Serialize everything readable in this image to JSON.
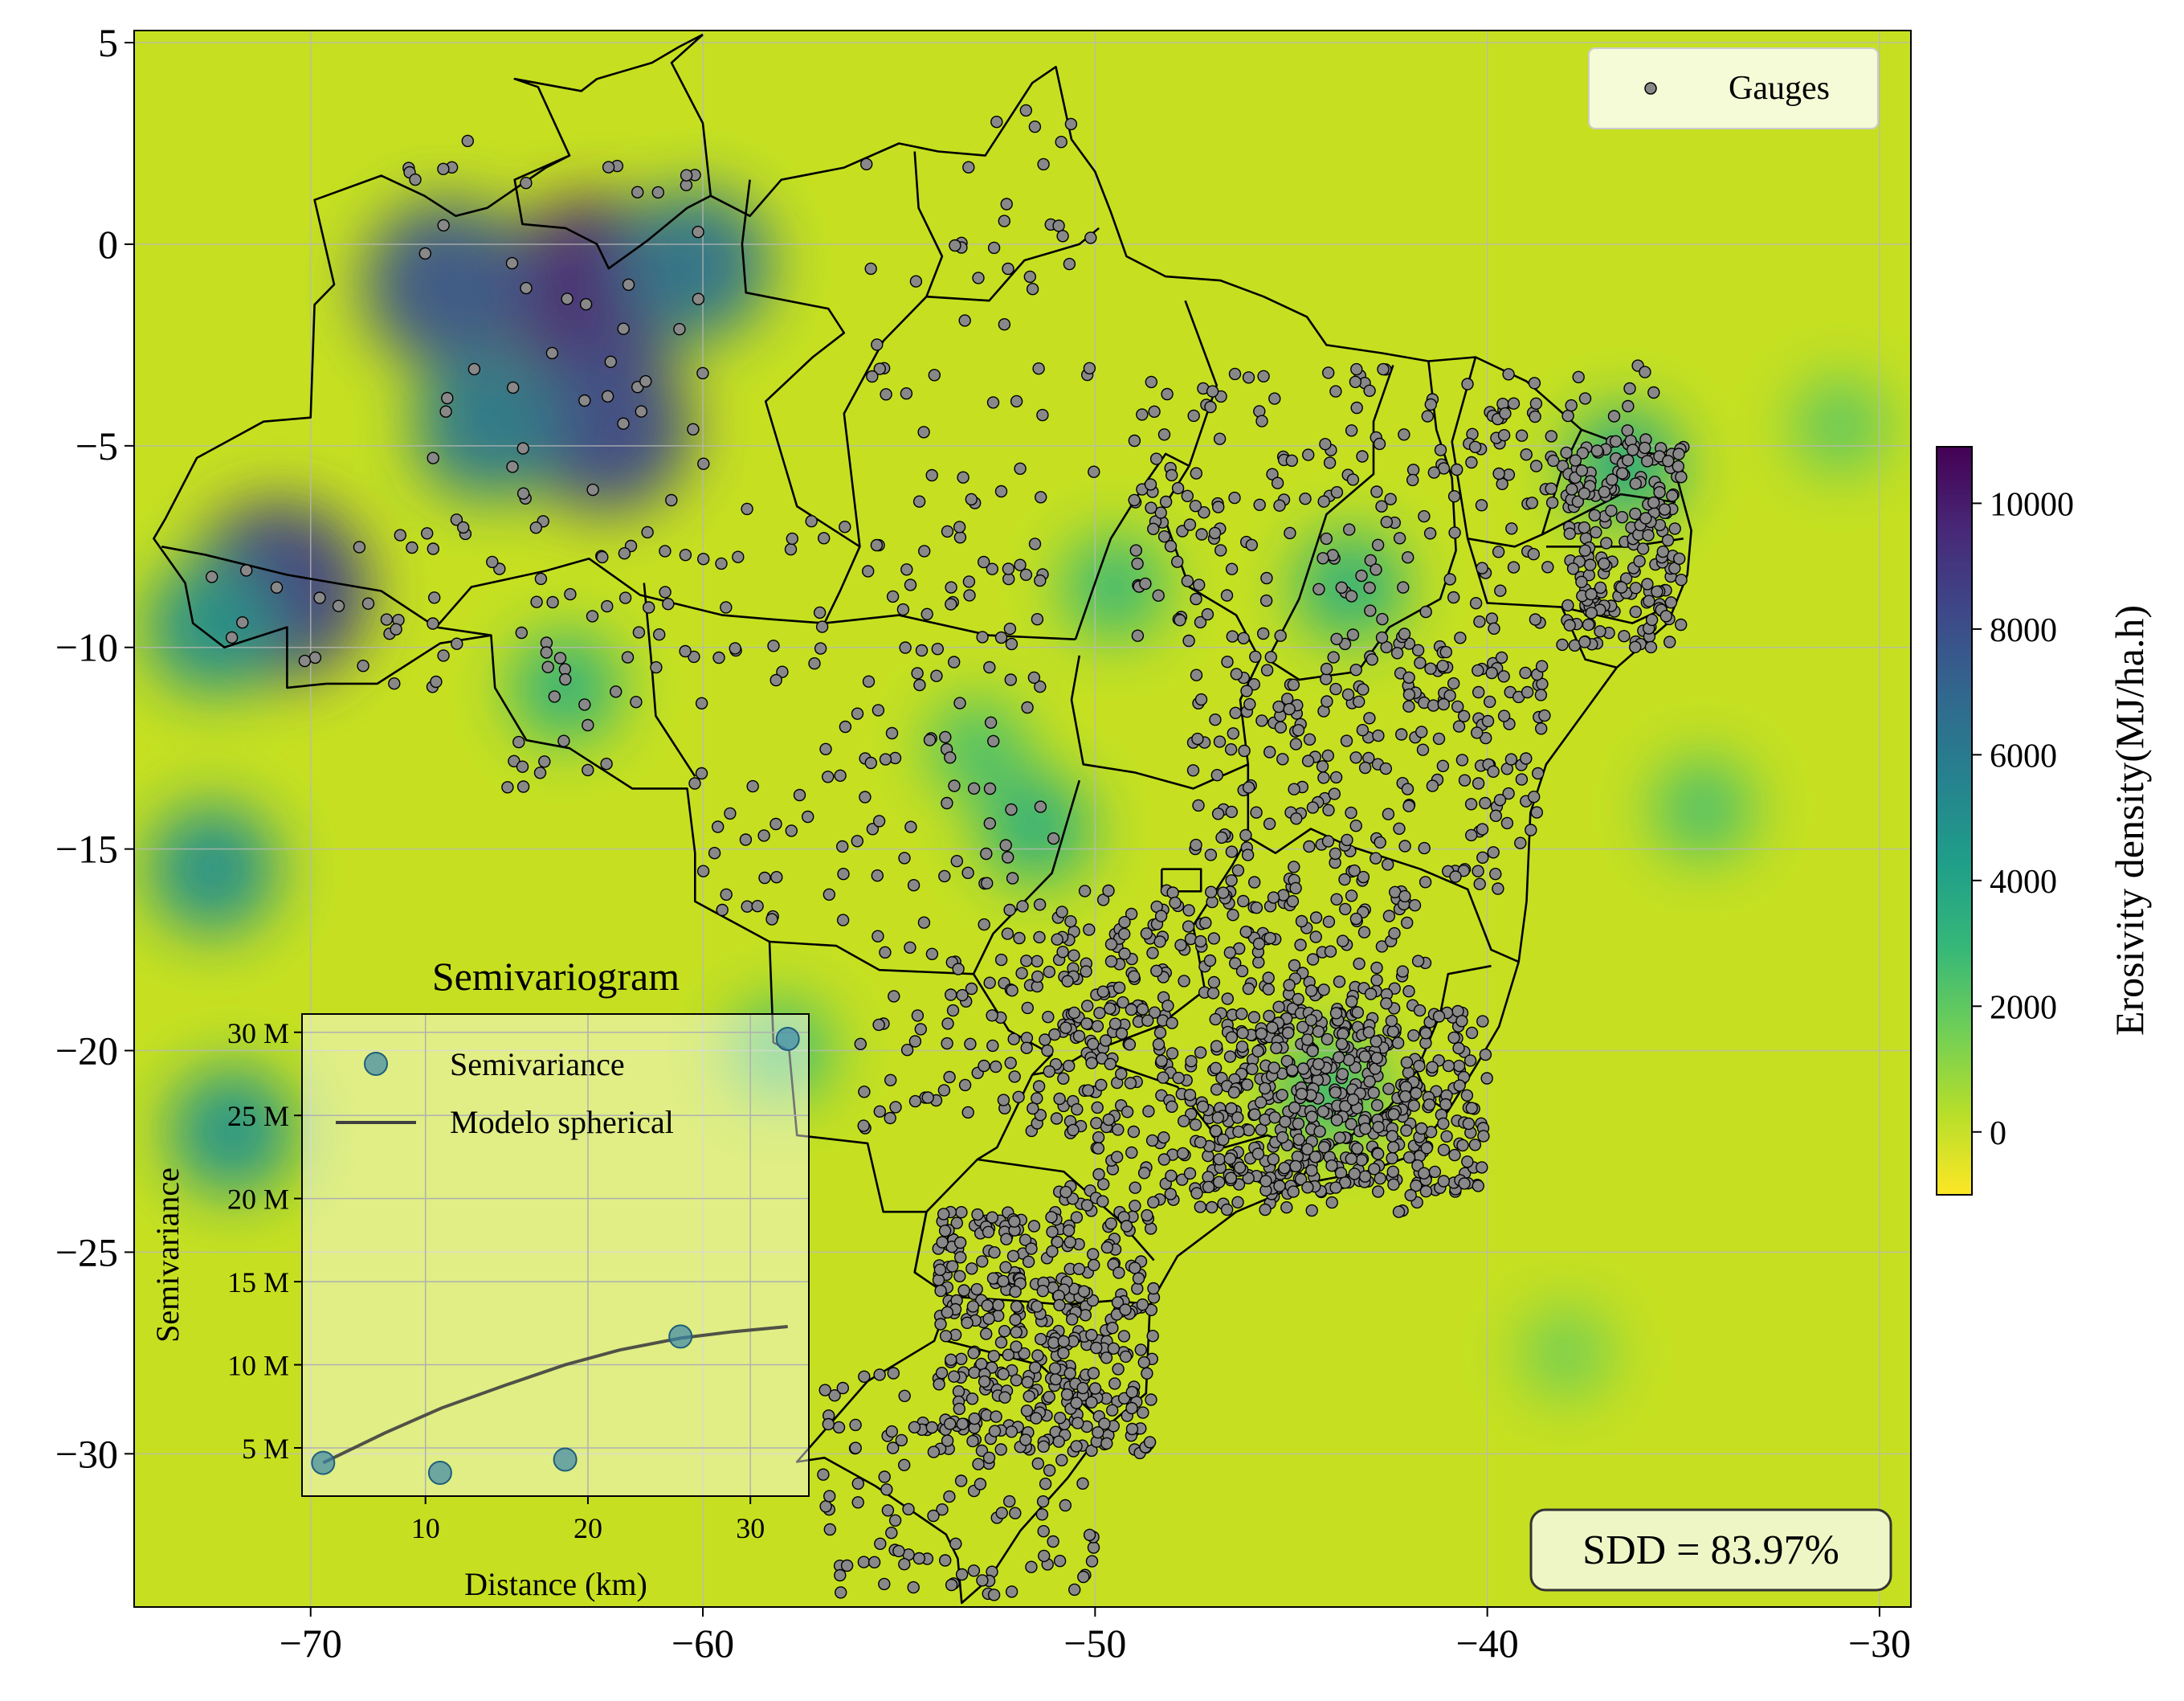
{
  "chart_data": [
    {
      "type": "heatmap",
      "kind": "interpolated map with gauge scatter",
      "x": {
        "lim": [
          -74.5,
          -29.2
        ],
        "ticks": [
          -70,
          -60,
          -50,
          -40,
          -30
        ],
        "tick_labels": [
          "−70",
          "−60",
          "−50",
          "−40",
          "−30"
        ]
      },
      "y": {
        "lim": [
          -33.8,
          5.3
        ],
        "ticks": [
          5,
          0,
          -5,
          -10,
          -15,
          -20,
          -25,
          -30
        ],
        "tick_labels": [
          "5",
          "0",
          "−5",
          "−10",
          "−15",
          "−20",
          "−25",
          "−30"
        ]
      },
      "grid": true,
      "legend": {
        "position": "top-right",
        "entries": [
          "Gauges"
        ]
      },
      "annotation": "SDD = 83.97%",
      "colorbar": {
        "label": "Erosivity density(MJ/ha.h)",
        "range": [
          -1000,
          10900
        ],
        "ticks": [
          0,
          2000,
          4000,
          6000,
          8000,
          10000
        ],
        "tick_labels": [
          "0",
          "2000",
          "4000",
          "6000",
          "8000",
          "10000"
        ],
        "colormap": "viridis_r",
        "colors": [
          "#fde725",
          "#b5de2b",
          "#6ece58",
          "#35b779",
          "#1f9e89",
          "#26828e",
          "#31688e",
          "#3e4989",
          "#482878",
          "#440154"
        ]
      },
      "gauge_color": "#888888",
      "high_density_zones": [
        {
          "lon": -62.8,
          "lat": -1.2,
          "value": 9500
        },
        {
          "lon": -66.5,
          "lat": -1.0,
          "value": 7800
        },
        {
          "lon": -62.5,
          "lat": -4.5,
          "value": 8200
        },
        {
          "lon": -70.8,
          "lat": -8.6,
          "value": 8600
        },
        {
          "lon": -72.5,
          "lat": -9.5,
          "value": 5200
        },
        {
          "lon": -72.5,
          "lat": -15.5,
          "value": 5000
        },
        {
          "lon": -72.0,
          "lat": -22.0,
          "value": 4800
        },
        {
          "lon": -60.2,
          "lat": -0.5,
          "value": 6500
        },
        {
          "lon": -65.5,
          "lat": -4.5,
          "value": 6200
        },
        {
          "lon": -51.5,
          "lat": -14.5,
          "value": 3500
        },
        {
          "lon": -49.5,
          "lat": -8.5,
          "value": 3000
        },
        {
          "lon": -53.0,
          "lat": -12.5,
          "value": 2600
        },
        {
          "lon": -43.5,
          "lat": -8.5,
          "value": 3500
        },
        {
          "lon": -63.5,
          "lat": -11.0,
          "value": 3400
        },
        {
          "lon": -44.0,
          "lat": -21.0,
          "value": 3200
        },
        {
          "lon": -58.0,
          "lat": -20.0,
          "value": 2800
        },
        {
          "lon": -36.5,
          "lat": -5.5,
          "value": 3800
        },
        {
          "lon": -34.5,
          "lat": -14.0,
          "value": 2600
        },
        {
          "lon": -31.0,
          "lat": -4.5,
          "value": 2200
        },
        {
          "lon": -38.0,
          "lat": -27.5,
          "value": 1800
        }
      ],
      "gauge_density_regions": [
        {
          "lon": [
            -67.5,
            -59.5
          ],
          "lat": [
            -11,
            3
          ],
          "n": 70
        },
        {
          "lon": [
            -73.5,
            -66
          ],
          "lat": [
            -11,
            -7
          ],
          "n": 25
        },
        {
          "lon": [
            -65,
            -60
          ],
          "lat": [
            -13.5,
            -8.5
          ],
          "n": 35
        },
        {
          "lon": [
            -60,
            -51
          ],
          "lat": [
            -17,
            -6
          ],
          "n": 140
        },
        {
          "lon": [
            -56,
            -50
          ],
          "lat": [
            -6,
            3.5
          ],
          "n": 45
        },
        {
          "lon": [
            -49,
            -35.2
          ],
          "lat": [
            -10,
            -3
          ],
          "n": 280
        },
        {
          "lon": [
            -38,
            -35
          ],
          "lat": [
            -10,
            -5
          ],
          "n": 160
        },
        {
          "lon": [
            -47.5,
            -38.5
          ],
          "lat": [
            -16,
            -10
          ],
          "n": 240
        },
        {
          "lon": [
            -51,
            -41.5
          ],
          "lat": [
            -24,
            -16
          ],
          "n": 520
        },
        {
          "lon": [
            -47,
            -40
          ],
          "lat": [
            -23.5,
            -19
          ],
          "n": 300
        },
        {
          "lon": [
            -54,
            -48.5
          ],
          "lat": [
            -30,
            -24
          ],
          "n": 380
        },
        {
          "lon": [
            -57,
            -50
          ],
          "lat": [
            -33.5,
            -28
          ],
          "n": 130
        },
        {
          "lon": [
            -56,
            -48
          ],
          "lat": [
            -22,
            -17
          ],
          "n": 110
        }
      ]
    },
    {
      "type": "scatter",
      "title": "Semivariogram",
      "xlabel": "Distance (km)",
      "ylabel": "Semivariance",
      "xlim": [
        2.4,
        33.6
      ],
      "ylim": [
        2.1,
        31.1
      ],
      "x_ticks": [
        10,
        20,
        30
      ],
      "y_ticks": [
        5,
        10,
        15,
        20,
        25,
        30
      ],
      "y_tick_labels": [
        "5 M",
        "10 M",
        "15 M",
        "20 M",
        "25 M",
        "30 M"
      ],
      "grid": true,
      "legend": {
        "position": "top",
        "entries": [
          "Semivariance",
          "Modelo spherical"
        ]
      },
      "series": [
        {
          "name": "Semivariance",
          "marker": "circle",
          "color": "#3a88a8",
          "x": [
            3.7,
            10.9,
            18.6,
            25.7,
            32.3
          ],
          "y": [
            4.1,
            3.5,
            4.3,
            11.7,
            29.6
          ]
        },
        {
          "name": "Modelo spherical",
          "line": true,
          "color": "#404040",
          "x": [
            3.7,
            7.5,
            11.0,
            15.0,
            18.6,
            22.0,
            25.7,
            29.0,
            32.3
          ],
          "y": [
            4.1,
            5.9,
            7.4,
            8.8,
            10.0,
            10.9,
            11.6,
            12.0,
            12.3
          ]
        }
      ]
    }
  ]
}
